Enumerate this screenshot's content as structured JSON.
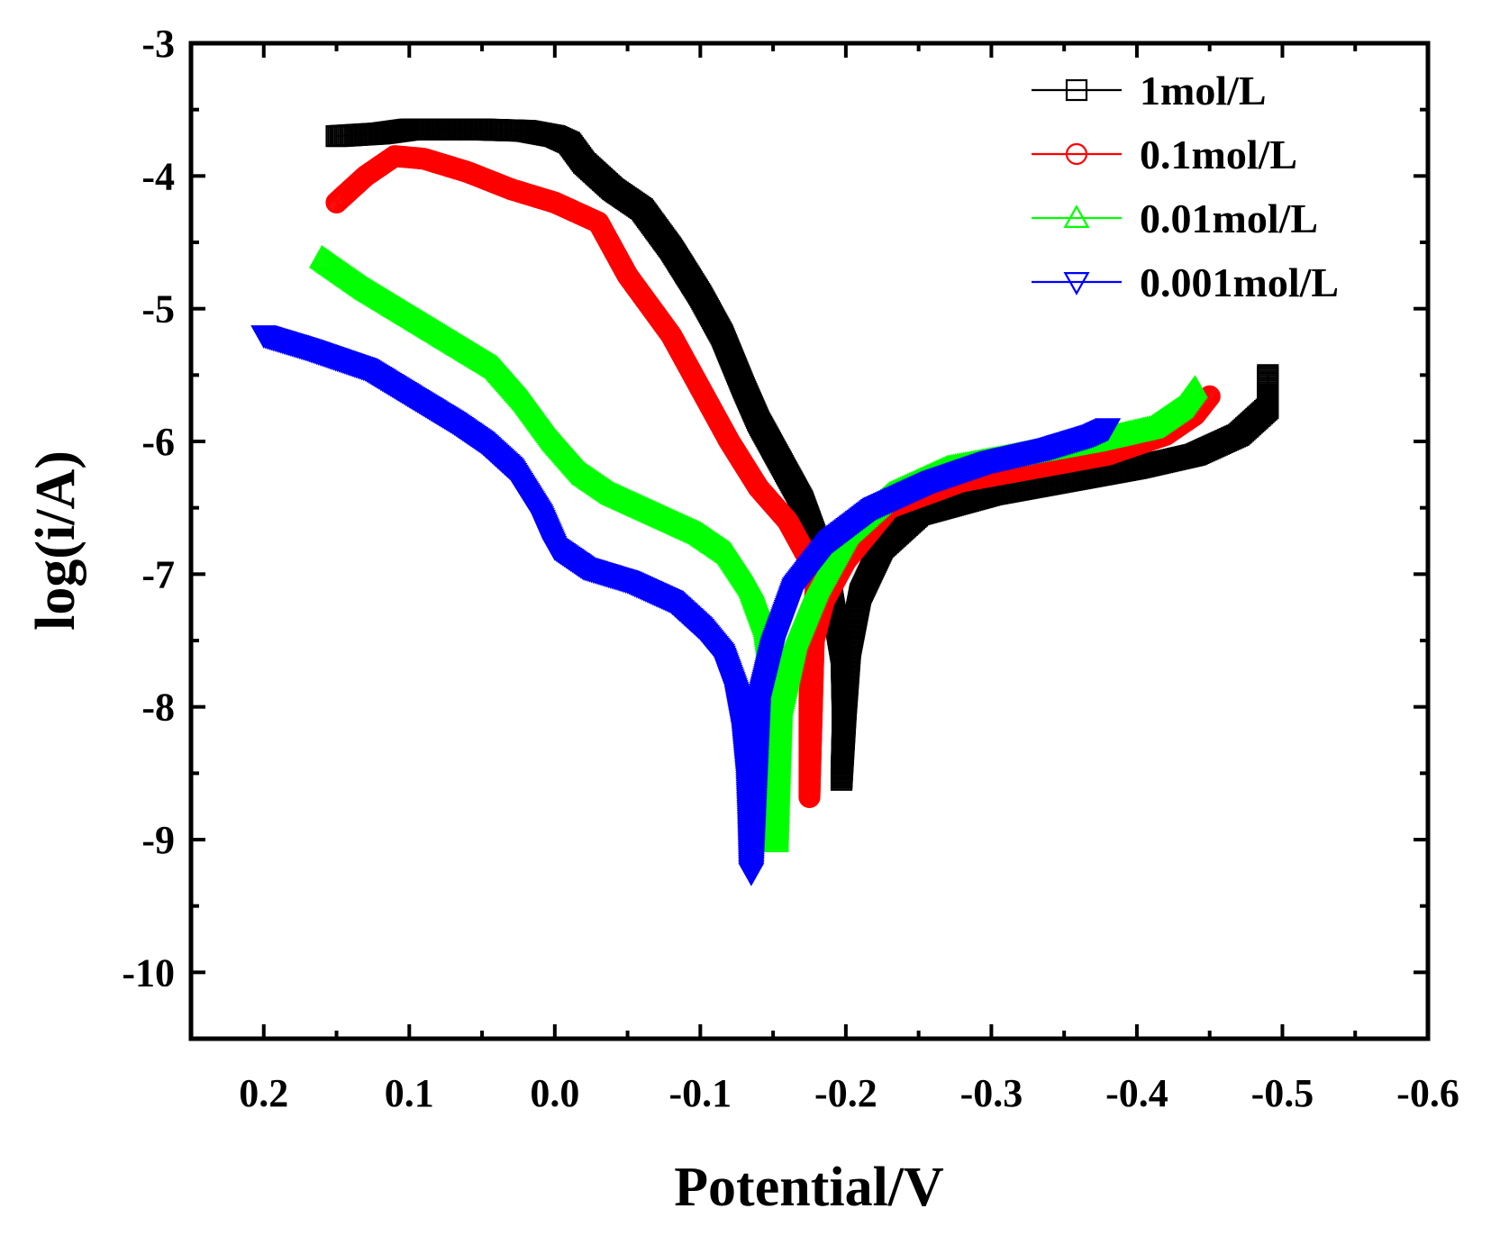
{
  "chart_data": {
    "type": "line",
    "title": "",
    "xlabel": "Potential/V",
    "ylabel": "log(i/A)",
    "xlim": [
      0.25,
      -0.6
    ],
    "ylim": [
      -10.5,
      -3
    ],
    "x_ticks": [
      0.2,
      0.1,
      0.0,
      -0.1,
      -0.2,
      -0.3,
      -0.4,
      -0.5,
      -0.6
    ],
    "x_tick_labels": [
      "0.2",
      "0.1",
      "0.0",
      "-0.1",
      "-0.2",
      "-0.3",
      "-0.4",
      "-0.5",
      "-0.6"
    ],
    "y_ticks": [
      -3,
      -4,
      -5,
      -6,
      -7,
      -8,
      -9,
      -10
    ],
    "y_tick_labels": [
      "-3",
      "-4",
      "-5",
      "-6",
      "-7",
      "-8",
      "-9",
      "-10"
    ],
    "legend_position": "top-right",
    "series": [
      {
        "name": "1mol/L",
        "color": "#000000",
        "marker": "square",
        "points": [
          [
            0.15,
            -3.7
          ],
          [
            0.12,
            -3.68
          ],
          [
            0.1,
            -3.65
          ],
          [
            0.05,
            -3.65
          ],
          [
            0.02,
            -3.66
          ],
          [
            0.0,
            -3.7
          ],
          [
            -0.01,
            -3.75
          ],
          [
            -0.02,
            -3.9
          ],
          [
            -0.04,
            -4.1
          ],
          [
            -0.06,
            -4.25
          ],
          [
            -0.08,
            -4.55
          ],
          [
            -0.1,
            -4.9
          ],
          [
            -0.115,
            -5.2
          ],
          [
            -0.13,
            -5.6
          ],
          [
            -0.14,
            -5.85
          ],
          [
            -0.15,
            -6.05
          ],
          [
            -0.16,
            -6.25
          ],
          [
            -0.17,
            -6.45
          ],
          [
            -0.18,
            -6.75
          ],
          [
            -0.19,
            -7.15
          ],
          [
            -0.197,
            -7.6
          ],
          [
            -0.198,
            -8.1
          ],
          [
            -0.197,
            -8.55
          ],
          [
            -0.2,
            -8.0
          ],
          [
            -0.203,
            -7.55
          ],
          [
            -0.21,
            -7.15
          ],
          [
            -0.225,
            -6.8
          ],
          [
            -0.25,
            -6.55
          ],
          [
            -0.3,
            -6.4
          ],
          [
            -0.35,
            -6.3
          ],
          [
            -0.4,
            -6.2
          ],
          [
            -0.44,
            -6.1
          ],
          [
            -0.47,
            -5.95
          ],
          [
            -0.49,
            -5.75
          ],
          [
            -0.49,
            -5.5
          ]
        ]
      },
      {
        "name": "0.1mol/L",
        "color": "#ff0000",
        "marker": "circle",
        "points": [
          [
            0.15,
            -4.2
          ],
          [
            0.13,
            -4.0
          ],
          [
            0.11,
            -3.85
          ],
          [
            0.09,
            -3.87
          ],
          [
            0.06,
            -3.97
          ],
          [
            0.03,
            -4.1
          ],
          [
            0.0,
            -4.2
          ],
          [
            -0.03,
            -4.35
          ],
          [
            -0.05,
            -4.75
          ],
          [
            -0.08,
            -5.2
          ],
          [
            -0.1,
            -5.6
          ],
          [
            -0.12,
            -6.0
          ],
          [
            -0.14,
            -6.35
          ],
          [
            -0.16,
            -6.6
          ],
          [
            -0.17,
            -6.8
          ],
          [
            -0.18,
            -7.0
          ],
          [
            -0.178,
            -7.3
          ],
          [
            -0.176,
            -7.6
          ],
          [
            -0.175,
            -7.95
          ],
          [
            -0.175,
            -8.15
          ],
          [
            -0.175,
            -8.68
          ],
          [
            -0.178,
            -7.5
          ],
          [
            -0.185,
            -7.2
          ],
          [
            -0.2,
            -6.9
          ],
          [
            -0.23,
            -6.5
          ],
          [
            -0.28,
            -6.3
          ],
          [
            -0.33,
            -6.2
          ],
          [
            -0.38,
            -6.1
          ],
          [
            -0.42,
            -5.95
          ],
          [
            -0.44,
            -5.8
          ],
          [
            -0.45,
            -5.66
          ]
        ]
      },
      {
        "name": "0.01mol/L",
        "color": "#00ff00",
        "marker": "triangle-up",
        "points": [
          [
            0.16,
            -4.62
          ],
          [
            0.13,
            -4.85
          ],
          [
            0.1,
            -5.05
          ],
          [
            0.07,
            -5.25
          ],
          [
            0.04,
            -5.45
          ],
          [
            0.02,
            -5.7
          ],
          [
            0.0,
            -6.0
          ],
          [
            -0.02,
            -6.25
          ],
          [
            -0.04,
            -6.4
          ],
          [
            -0.06,
            -6.5
          ],
          [
            -0.08,
            -6.6
          ],
          [
            -0.1,
            -6.7
          ],
          [
            -0.12,
            -6.85
          ],
          [
            -0.135,
            -7.1
          ],
          [
            -0.145,
            -7.4
          ],
          [
            -0.15,
            -7.8
          ],
          [
            -0.152,
            -8.3
          ],
          [
            -0.152,
            -8.65
          ],
          [
            -0.152,
            -9.02
          ],
          [
            -0.155,
            -8.0
          ],
          [
            -0.165,
            -7.5
          ],
          [
            -0.18,
            -7.1
          ],
          [
            -0.2,
            -6.7
          ],
          [
            -0.23,
            -6.4
          ],
          [
            -0.27,
            -6.2
          ],
          [
            -0.32,
            -6.1
          ],
          [
            -0.37,
            -6.0
          ],
          [
            -0.41,
            -5.9
          ],
          [
            -0.43,
            -5.75
          ],
          [
            -0.44,
            -5.6
          ]
        ]
      },
      {
        "name": "0.001mol/L",
        "color": "#0000ff",
        "marker": "triangle-down",
        "points": [
          [
            0.2,
            -5.2
          ],
          [
            0.17,
            -5.3
          ],
          [
            0.13,
            -5.45
          ],
          [
            0.1,
            -5.65
          ],
          [
            0.07,
            -5.85
          ],
          [
            0.05,
            -6.0
          ],
          [
            0.03,
            -6.2
          ],
          [
            0.01,
            -6.55
          ],
          [
            0.0,
            -6.8
          ],
          [
            -0.02,
            -6.95
          ],
          [
            -0.05,
            -7.05
          ],
          [
            -0.08,
            -7.2
          ],
          [
            -0.1,
            -7.4
          ],
          [
            -0.115,
            -7.6
          ],
          [
            -0.125,
            -7.9
          ],
          [
            -0.13,
            -8.2
          ],
          [
            -0.133,
            -8.55
          ],
          [
            -0.134,
            -8.85
          ],
          [
            -0.135,
            -9.25
          ],
          [
            -0.14,
            -8.0
          ],
          [
            -0.15,
            -7.55
          ],
          [
            -0.165,
            -7.1
          ],
          [
            -0.19,
            -6.75
          ],
          [
            -0.22,
            -6.5
          ],
          [
            -0.26,
            -6.3
          ],
          [
            -0.3,
            -6.15
          ],
          [
            -0.34,
            -6.05
          ],
          [
            -0.37,
            -5.95
          ],
          [
            -0.38,
            -5.9
          ]
        ]
      }
    ]
  }
}
